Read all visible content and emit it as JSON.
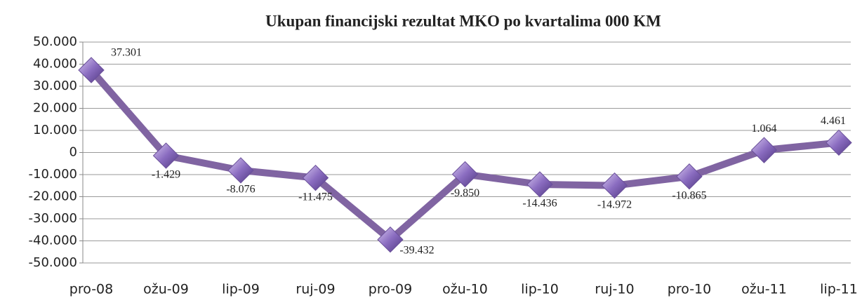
{
  "chart_data": {
    "type": "line",
    "title": "Ukupan financijski rezultat MKO po kvartalima 000 KM",
    "categories": [
      "pro-08",
      "ožu-09",
      "lip-09",
      "ruj-09",
      "pro-09",
      "ožu-10",
      "lip-10",
      "ruj-10",
      "pro-10",
      "ožu-11",
      "lip-11"
    ],
    "values": [
      37301,
      -1429,
      -8076,
      -11475,
      -39432,
      -9850,
      -14436,
      -14972,
      -10865,
      1064,
      4461
    ],
    "value_labels": [
      "37.301",
      "-1.429",
      "-8.076",
      "-11.475",
      "-39.432",
      "-9.850",
      "-14.436",
      "-14.972",
      "-10.865",
      "1.064",
      "4.461"
    ],
    "color": "#8064a2",
    "ylim": [
      -50000,
      50000
    ],
    "yticks": [
      {
        "value": -50000,
        "label": "-50.000"
      },
      {
        "value": -40000,
        "label": "-40.000"
      },
      {
        "value": -30000,
        "label": "-30.000"
      },
      {
        "value": -20000,
        "label": "-20.000"
      },
      {
        "value": -10000,
        "label": "-10.000"
      },
      0,
      {
        "value": 10000,
        "label": "10.000"
      },
      {
        "value": 20000,
        "label": "20.000"
      },
      {
        "value": 30000,
        "label": "30.000"
      },
      {
        "value": 40000,
        "label": "40.000"
      },
      {
        "value": 50000,
        "label": "50.000"
      }
    ],
    "grid": true
  }
}
